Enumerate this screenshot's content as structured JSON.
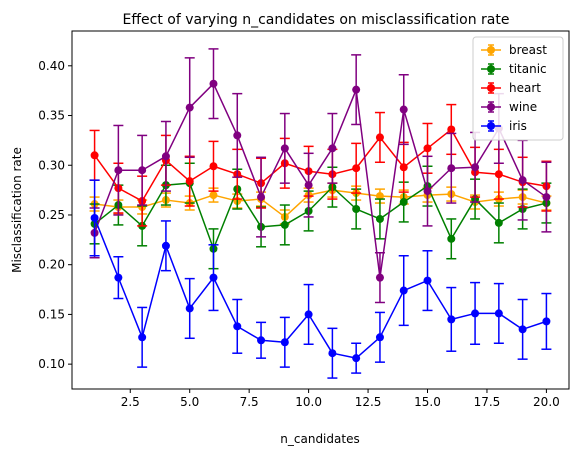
{
  "chart_data": {
    "type": "line",
    "title": "Effect of varying n_candidates on misclassification rate",
    "xlabel": "n_candidates",
    "ylabel": "Misclassification rate",
    "xlim": [
      0.05,
      20.95
    ],
    "ylim": [
      0.075,
      0.435
    ],
    "xticks": [
      2.5,
      5.0,
      7.5,
      10.0,
      12.5,
      15.0,
      17.5,
      20.0
    ],
    "xtick_labels": [
      "2.5",
      "5.0",
      "7.5",
      "10.0",
      "12.5",
      "15.0",
      "17.5",
      "20.0"
    ],
    "yticks": [
      0.1,
      0.15,
      0.2,
      0.25,
      0.3,
      0.35,
      0.4
    ],
    "ytick_labels": [
      "0.10",
      "0.15",
      "0.20",
      "0.25",
      "0.30",
      "0.35",
      "0.40"
    ],
    "grid": false,
    "legend_position": "top-right",
    "error_bars": true,
    "x": [
      1,
      2,
      3,
      4,
      5,
      6,
      7,
      8,
      9,
      10,
      11,
      12,
      13,
      14,
      15,
      16,
      17,
      18,
      19,
      20
    ],
    "series": [
      {
        "name": "breast",
        "color": "#FFA500",
        "values": [
          0.261,
          0.258,
          0.258,
          0.265,
          0.262,
          0.27,
          0.264,
          0.266,
          0.248,
          0.27,
          0.275,
          0.272,
          0.269,
          0.268,
          0.27,
          0.271,
          0.263,
          0.266,
          0.268,
          0.262
        ],
        "errors": [
          0.007,
          0.007,
          0.007,
          0.007,
          0.007,
          0.007,
          0.007,
          0.007,
          0.007,
          0.007,
          0.007,
          0.007,
          0.007,
          0.007,
          0.007,
          0.007,
          0.007,
          0.007,
          0.007,
          0.007
        ]
      },
      {
        "name": "titanic",
        "color": "#008000",
        "values": [
          0.241,
          0.26,
          0.239,
          0.28,
          0.282,
          0.216,
          0.276,
          0.238,
          0.24,
          0.254,
          0.278,
          0.256,
          0.246,
          0.263,
          0.279,
          0.226,
          0.266,
          0.242,
          0.256,
          0.262
        ],
        "errors": [
          0.02,
          0.02,
          0.02,
          0.02,
          0.02,
          0.02,
          0.02,
          0.02,
          0.02,
          0.02,
          0.02,
          0.02,
          0.02,
          0.02,
          0.02,
          0.02,
          0.02,
          0.02,
          0.02,
          0.02
        ]
      },
      {
        "name": "heart",
        "color": "#FF0000",
        "values": [
          0.31,
          0.277,
          0.264,
          0.305,
          0.284,
          0.299,
          0.291,
          0.282,
          0.302,
          0.294,
          0.291,
          0.297,
          0.328,
          0.298,
          0.317,
          0.336,
          0.293,
          0.291,
          0.283,
          0.279
        ],
        "errors": [
          0.025,
          0.025,
          0.025,
          0.025,
          0.025,
          0.025,
          0.025,
          0.025,
          0.025,
          0.025,
          0.025,
          0.025,
          0.025,
          0.025,
          0.025,
          0.025,
          0.025,
          0.025,
          0.025,
          0.025
        ]
      },
      {
        "name": "wine",
        "color": "#800080",
        "values": [
          0.232,
          0.295,
          0.295,
          0.309,
          0.358,
          0.382,
          0.33,
          0.268,
          0.317,
          0.28,
          0.317,
          0.376,
          0.187,
          0.356,
          0.274,
          0.297,
          0.298,
          0.337,
          0.285,
          0.268
        ],
        "errors": [
          0.025,
          0.045,
          0.035,
          0.035,
          0.05,
          0.035,
          0.042,
          0.04,
          0.035,
          0.032,
          0.035,
          0.035,
          0.025,
          0.035,
          0.035,
          0.035,
          0.035,
          0.035,
          0.04,
          0.035
        ]
      },
      {
        "name": "iris",
        "color": "#0000FF",
        "values": [
          0.247,
          0.187,
          0.127,
          0.219,
          0.156,
          0.187,
          0.138,
          0.124,
          0.122,
          0.15,
          0.111,
          0.106,
          0.127,
          0.174,
          0.184,
          0.145,
          0.151,
          0.151,
          0.135,
          0.143
        ],
        "errors": [
          0.038,
          0.021,
          0.03,
          0.025,
          0.03,
          0.033,
          0.027,
          0.018,
          0.025,
          0.03,
          0.025,
          0.015,
          0.025,
          0.035,
          0.03,
          0.032,
          0.031,
          0.03,
          0.03,
          0.028
        ]
      }
    ]
  }
}
